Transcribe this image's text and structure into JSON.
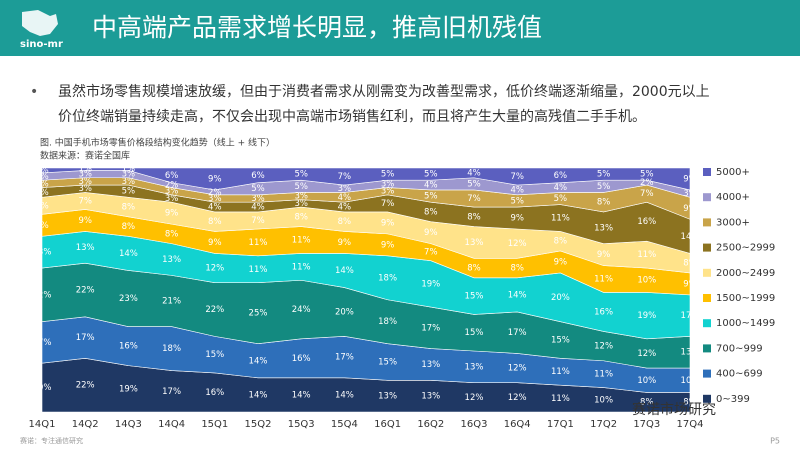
{
  "header": {
    "logo": "sino-mr",
    "title": "中高端产品需求增长明显，推高旧机残值"
  },
  "bullet": {
    "lines": [
      "虽然市场零售规模增速放缓，但由于消费者需求从刚需变为改善型需求，低价终端逐渐缩量，2000元以上",
      "价位终端销量持续走高，不仅会出现中高端市场销售红利，而且将产生大量的高残值二手手机。"
    ]
  },
  "chart_data": {
    "type": "stacked_area",
    "title": "图. 中国手机市场零售价格段结构变化趋势（线上 + 线下）",
    "subtitle": "数据来源：赛诺全国库",
    "categories": [
      "14Q1",
      "14Q2",
      "14Q3",
      "14Q4",
      "15Q1",
      "15Q2",
      "15Q3",
      "15Q4",
      "16Q1",
      "16Q2",
      "16Q3",
      "16Q4",
      "17Q1",
      "17Q2",
      "17Q3",
      "17Q4"
    ],
    "ylim": [
      0,
      100
    ],
    "series": [
      {
        "name": "0~399",
        "color": "#1f3864",
        "values": [
          20,
          22,
          19,
          17,
          16,
          14,
          14,
          14,
          13,
          13,
          12,
          12,
          11,
          10,
          8,
          8
        ],
        "value_labels": [
          "20%",
          "22%",
          "19%",
          "17%",
          "16%",
          "14%",
          "14%",
          "14%",
          "13%",
          "13%",
          "12%",
          "12%",
          "11%",
          "10%",
          "8%",
          "8%"
        ]
      },
      {
        "name": "400~699",
        "color": "#2e6fba",
        "values": [
          17,
          17,
          16,
          18,
          15,
          14,
          16,
          17,
          15,
          13,
          13,
          12,
          11,
          11,
          10,
          10
        ],
        "value_labels": [
          "17%",
          "17%",
          "16%",
          "18%",
          "15%",
          "14%",
          "16%",
          "17%",
          "15%",
          "13%",
          "13%",
          "12%",
          "11%",
          "11%",
          "10%",
          "10%"
        ]
      },
      {
        "name": "700~999",
        "color": "#138a80",
        "values": [
          22,
          22,
          23,
          21,
          22,
          25,
          24,
          20,
          18,
          17,
          15,
          17,
          15,
          12,
          12,
          13
        ],
        "value_labels": [
          "22%",
          "22%",
          "23%",
          "21%",
          "22%",
          "25%",
          "24%",
          "20%",
          "18%",
          "17%",
          "15%",
          "17%",
          "15%",
          "12%",
          "12%",
          "13%"
        ]
      },
      {
        "name": "1000~1499",
        "color": "#12d2d0",
        "values": [
          13,
          13,
          14,
          13,
          12,
          11,
          11,
          14,
          18,
          19,
          15,
          14,
          20,
          16,
          19,
          17
        ],
        "value_labels": [
          "13%",
          "13%",
          "14%",
          "13%",
          "12%",
          "11%",
          "11%",
          "14%",
          "18%",
          "19%",
          "15%",
          "14%",
          "20%",
          "16%",
          "19%",
          "17%"
        ]
      },
      {
        "name": "1500~1999",
        "color": "#ffc000",
        "values": [
          9,
          9,
          8,
          8,
          9,
          11,
          11,
          9,
          9,
          7,
          8,
          8,
          9,
          11,
          10,
          9
        ],
        "value_labels": [
          "9%",
          "9%",
          "8%",
          "8%",
          "9%",
          "11%",
          "11%",
          "9%",
          "9%",
          "7%",
          "8%",
          "8%",
          "9%",
          "11%",
          "10%",
          "9%"
        ]
      },
      {
        "name": "2000~2499",
        "color": "#ffe38a",
        "values": [
          7,
          7,
          8,
          9,
          8,
          7,
          8,
          8,
          9,
          9,
          13,
          12,
          8,
          9,
          11,
          8
        ],
        "value_labels": [
          "7%",
          "7%",
          "8%",
          "9%",
          "8%",
          "7%",
          "8%",
          "8%",
          "9%",
          "9%",
          "13%",
          "12%",
          "8%",
          "9%",
          "11%",
          "8%"
        ]
      },
      {
        "name": "2500~2999",
        "color": "#8c7320",
        "values": [
          4,
          3,
          5,
          3,
          4,
          4,
          3,
          4,
          7,
          8,
          8,
          9,
          11,
          13,
          16,
          14
        ],
        "value_labels": [
          "4%",
          "3%",
          "5%",
          "3%",
          "4%",
          "4%",
          "3%",
          "4%",
          "7%",
          "8%",
          "8%",
          "9%",
          "11%",
          "13%",
          "16%",
          "14%"
        ]
      },
      {
        "name": "3000+",
        "color": "#c9a449",
        "values": [
          3,
          3,
          3,
          3,
          3,
          3,
          3,
          4,
          3,
          5,
          7,
          5,
          5,
          8,
          7,
          9
        ],
        "value_labels": [
          "3%",
          "3%",
          "3%",
          "3%",
          "3%",
          "3%",
          "3%",
          "4%",
          "3%",
          "5%",
          "7%",
          "5%",
          "5%",
          "8%",
          "7%",
          "9%"
        ]
      },
      {
        "name": "4000+",
        "color": "#9d98cf",
        "values": [
          3,
          3,
          3,
          2,
          2,
          5,
          5,
          3,
          3,
          4,
          5,
          4,
          4,
          5,
          2,
          3
        ],
        "value_labels": [
          "3%",
          "3%",
          "3%",
          "2%",
          "2%",
          "5%",
          "5%",
          "3%",
          "3%",
          "4%",
          "5%",
          "4%",
          "4%",
          "5%",
          "2%",
          "3%"
        ]
      },
      {
        "name": "5000+",
        "color": "#5b5fbf",
        "values": [
          2,
          1,
          1,
          6,
          9,
          6,
          5,
          7,
          5,
          5,
          4,
          7,
          6,
          5,
          5,
          9
        ],
        "value_labels": [
          "2%",
          "1%",
          "1%",
          "6%",
          "9%",
          "6%",
          "5%",
          "7%",
          "5%",
          "5%",
          "4%",
          "7%",
          "6%",
          "5%",
          "5%",
          "9%"
        ]
      }
    ]
  },
  "watermark": "赛诺市场研究",
  "footer": {
    "source": "赛诺：专注通信研究",
    "page": "P5"
  }
}
